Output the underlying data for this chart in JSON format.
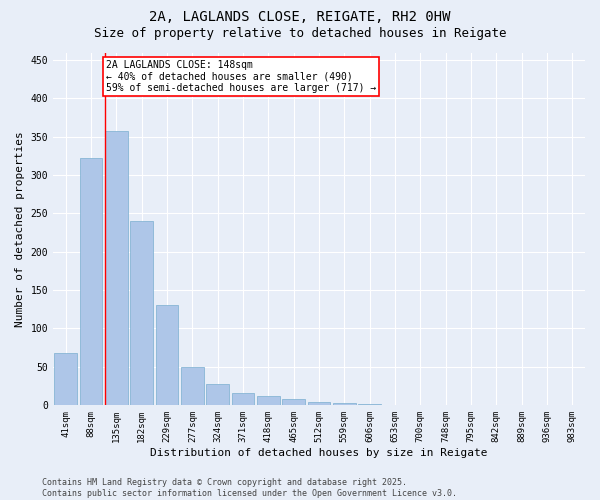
{
  "title_line1": "2A, LAGLANDS CLOSE, REIGATE, RH2 0HW",
  "title_line2": "Size of property relative to detached houses in Reigate",
  "xlabel": "Distribution of detached houses by size in Reigate",
  "ylabel": "Number of detached properties",
  "categories": [
    "41sqm",
    "88sqm",
    "135sqm",
    "182sqm",
    "229sqm",
    "277sqm",
    "324sqm",
    "371sqm",
    "418sqm",
    "465sqm",
    "512sqm",
    "559sqm",
    "606sqm",
    "653sqm",
    "700sqm",
    "748sqm",
    "795sqm",
    "842sqm",
    "889sqm",
    "936sqm",
    "983sqm"
  ],
  "values": [
    68,
    322,
    357,
    240,
    130,
    50,
    27,
    15,
    12,
    8,
    4,
    2,
    1,
    0,
    0,
    0,
    0,
    0,
    0,
    0,
    0
  ],
  "bar_color": "#aec6e8",
  "bar_edge_color": "#7aaed0",
  "red_line_index": 2,
  "annotation_title": "2A LAGLANDS CLOSE: 148sqm",
  "annotation_line1": "← 40% of detached houses are smaller (490)",
  "annotation_line2": "59% of semi-detached houses are larger (717) →",
  "annotation_box_color": "white",
  "annotation_box_edge_color": "red",
  "ylim": [
    0,
    460
  ],
  "yticks": [
    0,
    50,
    100,
    150,
    200,
    250,
    300,
    350,
    400,
    450
  ],
  "footer_line1": "Contains HM Land Registry data © Crown copyright and database right 2025.",
  "footer_line2": "Contains public sector information licensed under the Open Government Licence v3.0.",
  "bg_color": "#e8eef8",
  "grid_color": "white",
  "title_fontsize": 10,
  "subtitle_fontsize": 9,
  "axis_label_fontsize": 8,
  "tick_fontsize": 6.5,
  "annotation_fontsize": 7,
  "footer_fontsize": 6
}
